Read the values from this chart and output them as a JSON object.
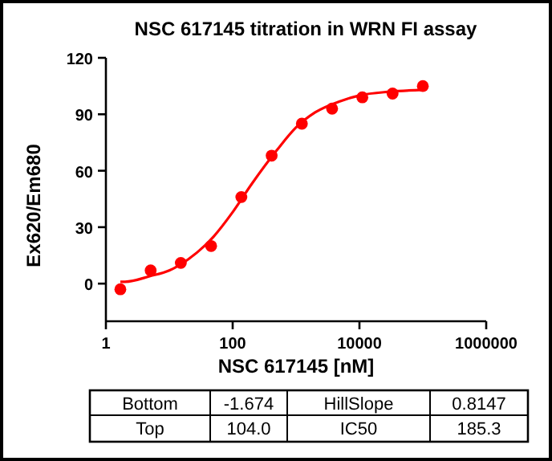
{
  "chart_data": {
    "type": "scatter",
    "title": "NSC 617145 titration in WRN FI assay",
    "xlabel": "NSC 617145 [nM]",
    "ylabel": "Ex620/Em680",
    "log": "x",
    "xlim": [
      1,
      1000000
    ],
    "xticks": [
      1,
      100,
      10000,
      1000000
    ],
    "ylim": [
      -20,
      120
    ],
    "yticks": [
      0,
      30,
      60,
      90,
      120
    ],
    "grid": false,
    "series": [
      {
        "color": "#ff0000",
        "marker": "circle",
        "x": [
          1.69,
          5.08,
          15.2,
          45.7,
          137,
          412,
          1235,
          3704,
          11111,
          33333,
          100000
        ],
        "values": [
          -3,
          7,
          11,
          20,
          46,
          68,
          85,
          93,
          99,
          101,
          105
        ]
      },
      {
        "type": "line",
        "color": "#ff0000",
        "x": [
          1.69,
          2,
          5,
          10,
          20,
          50,
          100,
          200,
          500,
          1000,
          2000,
          5000,
          10000,
          30000,
          100000
        ],
        "values": [
          1,
          1,
          4,
          7,
          13,
          25,
          38,
          53,
          71,
          83,
          91,
          97,
          100,
          102,
          103
        ]
      }
    ],
    "annotations": [
      "Bottom",
      "-1.674",
      "HillSlope",
      "0.8147",
      "Top",
      "104.0",
      "IC50",
      "185.3"
    ]
  }
}
